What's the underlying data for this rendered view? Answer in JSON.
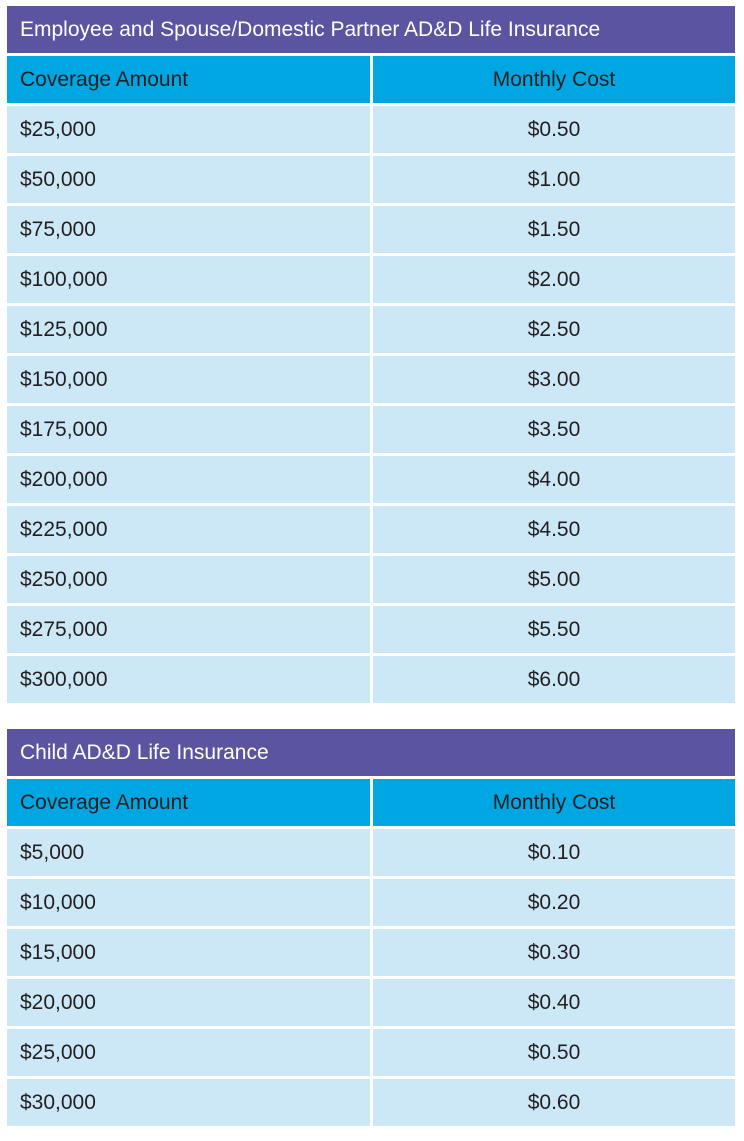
{
  "tables": [
    {
      "title": "Employee and Spouse/Domestic Partner AD&D Life  Insurance",
      "columns": [
        "Coverage Amount",
        "Monthly Cost"
      ],
      "rows": [
        [
          "$25,000",
          "$0.50"
        ],
        [
          "$50,000",
          "$1.00"
        ],
        [
          "$75,000",
          "$1.50"
        ],
        [
          "$100,000",
          "$2.00"
        ],
        [
          "$125,000",
          "$2.50"
        ],
        [
          "$150,000",
          "$3.00"
        ],
        [
          "$175,000",
          "$3.50"
        ],
        [
          "$200,000",
          "$4.00"
        ],
        [
          "$225,000",
          "$4.50"
        ],
        [
          "$250,000",
          "$5.00"
        ],
        [
          "$275,000",
          "$5.50"
        ],
        [
          "$300,000",
          "$6.00"
        ]
      ]
    },
    {
      "title": "Child AD&D Life Insurance",
      "columns": [
        "Coverage Amount",
        "Monthly Cost"
      ],
      "rows": [
        [
          "$5,000",
          "$0.10"
        ],
        [
          "$10,000",
          "$0.20"
        ],
        [
          "$15,000",
          "$0.30"
        ],
        [
          "$20,000",
          "$0.40"
        ],
        [
          "$25,000",
          "$0.50"
        ],
        [
          "$30,000",
          "$0.60"
        ]
      ]
    }
  ],
  "colors": {
    "title_bg": "#5b54a0",
    "header_bg": "#00a6e1",
    "row_bg": "#cce8f7"
  }
}
